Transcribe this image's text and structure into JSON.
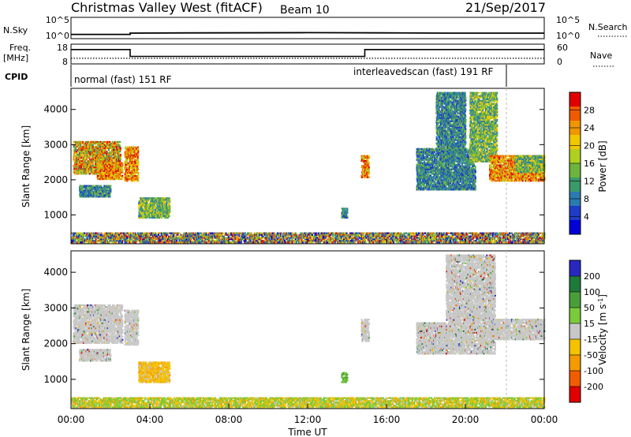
{
  "header": {
    "title": "Christmas Valley West (fitACF)",
    "beam": "Beam 10",
    "date": "21/Sep/2017"
  },
  "strip_labels": {
    "nsky": "N.Sky",
    "freq": "Freq.",
    "freq_unit": "[MHz]",
    "cpid": "CPID",
    "nsearch": "N.Search",
    "nave": "Nave",
    "nsky_ticks": [
      "10^5",
      "10^0"
    ],
    "nsearch_ticks": [
      "10^5",
      "10^0"
    ],
    "freq_ticks": [
      "18",
      "8"
    ],
    "nave_ticks": [
      "60",
      "0"
    ],
    "cpid_modes": [
      {
        "label": "normal (fast) 151 RF",
        "start": 0,
        "end": 21.9
      },
      {
        "label": "interleavedscan (fast) 191 RF",
        "start": 21.9,
        "end": 24
      }
    ]
  },
  "colors": {
    "power_scale": [
      "#0000d8",
      "#1e3cc8",
      "#2c7bb0",
      "#3a9a6a",
      "#6cb43c",
      "#b0d020",
      "#f0c800",
      "#f09600",
      "#f05a00",
      "#e00000"
    ],
    "velocity_scale": [
      "#2828c0",
      "#1e7a3a",
      "#4a9e3a",
      "#7acb3a",
      "#c8c8c8",
      "#f5c200",
      "#f59b00",
      "#f25c00",
      "#e00000"
    ]
  },
  "chart_data": [
    {
      "type": "line",
      "name": "N.Sky / N.Search",
      "x": [
        0,
        3,
        3,
        6,
        12,
        16,
        19,
        22,
        24
      ],
      "series": [
        {
          "values": [
            1.0,
            1.0,
            1.3,
            1.35,
            1.4,
            1.35,
            1.3,
            1.3,
            1.3
          ]
        }
      ],
      "ylim_log10": [
        0,
        5
      ]
    },
    {
      "type": "line",
      "name": "Freq / Nave",
      "x": [
        0,
        3.0,
        3.0,
        14.9,
        14.9,
        24
      ],
      "series": [
        {
          "name": "Freq.",
          "values": [
            15.3,
            15.3,
            11.8,
            11.8,
            15.3,
            15.3
          ]
        },
        {
          "name": "Nave",
          "values": [
            17,
            17,
            17,
            17,
            17,
            17
          ]
        }
      ],
      "freq_ylim": [
        8,
        18
      ],
      "nave_ylim": [
        0,
        60
      ]
    },
    {
      "type": "heatmap",
      "name": "power",
      "xlabel": "",
      "ylabel": "Slant Range [km]",
      "ylim": [
        180,
        4600
      ],
      "yticks": [
        1000,
        2000,
        3000,
        4000
      ],
      "xlim": [
        0,
        24
      ],
      "colorbar": {
        "label": "Power [dB]",
        "ticks": [
          4,
          8,
          12,
          16,
          20,
          24,
          28
        ],
        "range": [
          0,
          32
        ]
      },
      "regions": [
        {
          "t0": 0.1,
          "t1": 2.5,
          "r0": 2150,
          "r1": 3100,
          "level": "mid-high"
        },
        {
          "t0": 1.3,
          "t1": 2.6,
          "r0": 2000,
          "r1": 2500,
          "level": "high"
        },
        {
          "t0": 0.4,
          "t1": 2.0,
          "r0": 1500,
          "r1": 1850,
          "level": "low"
        },
        {
          "t0": 2.7,
          "t1": 3.4,
          "r0": 1950,
          "r1": 2950,
          "level": "high"
        },
        {
          "t0": 3.4,
          "t1": 5.0,
          "r0": 900,
          "r1": 1500,
          "level": "mid"
        },
        {
          "t0": 13.7,
          "t1": 14.0,
          "r0": 900,
          "r1": 1200,
          "level": "low"
        },
        {
          "t0": 14.7,
          "t1": 15.1,
          "r0": 2050,
          "r1": 2700,
          "level": "high"
        },
        {
          "t0": 17.5,
          "t1": 20.5,
          "r0": 1700,
          "r1": 2900,
          "level": "low"
        },
        {
          "t0": 18.5,
          "t1": 20.0,
          "r0": 2700,
          "r1": 4500,
          "level": "low"
        },
        {
          "t0": 20.2,
          "t1": 21.6,
          "r0": 2500,
          "r1": 4500,
          "level": "mid"
        },
        {
          "t0": 21.2,
          "t1": 24,
          "r0": 1950,
          "r1": 2700,
          "level": "high"
        },
        {
          "t0": 22.5,
          "t1": 24,
          "r0": 2200,
          "r1": 2700,
          "level": "mid"
        },
        {
          "t0": 0,
          "t1": 24,
          "r0": 200,
          "r1": 500,
          "level": "band"
        }
      ]
    },
    {
      "type": "heatmap",
      "name": "velocity",
      "xlabel": "Time UT",
      "ylabel": "Slant Range [km]",
      "ylim": [
        180,
        4600
      ],
      "yticks": [
        1000,
        2000,
        3000,
        4000
      ],
      "xlim": [
        0,
        24
      ],
      "xticks": [
        "00:00",
        "04:00",
        "08:00",
        "12:00",
        "16:00",
        "20:00",
        "00:00"
      ],
      "colorbar": {
        "label": "Velocity [m s",
        "label_sup": "-1",
        "label_end": "]",
        "ticks": [
          200,
          100,
          50,
          15,
          -15,
          -50,
          -100,
          -200
        ]
      },
      "regions": [
        {
          "t0": 0.1,
          "t1": 2.6,
          "r0": 2000,
          "r1": 3100,
          "level": "grey"
        },
        {
          "t0": 0.4,
          "t1": 2.0,
          "r0": 1500,
          "r1": 1850,
          "level": "grey"
        },
        {
          "t0": 2.7,
          "t1": 3.4,
          "r0": 1950,
          "r1": 2950,
          "level": "grey"
        },
        {
          "t0": 3.4,
          "t1": 5.0,
          "r0": 900,
          "r1": 1500,
          "level": "orange"
        },
        {
          "t0": 13.7,
          "t1": 14.0,
          "r0": 900,
          "r1": 1200,
          "level": "green"
        },
        {
          "t0": 14.7,
          "t1": 15.1,
          "r0": 2050,
          "r1": 2700,
          "level": "grey"
        },
        {
          "t0": 17.5,
          "t1": 21.5,
          "r0": 1700,
          "r1": 2600,
          "level": "grey"
        },
        {
          "t0": 19.0,
          "t1": 21.5,
          "r0": 2600,
          "r1": 4500,
          "level": "grey"
        },
        {
          "t0": 21.2,
          "t1": 24,
          "r0": 2100,
          "r1": 2700,
          "level": "grey"
        },
        {
          "t0": 0,
          "t1": 24,
          "r0": 200,
          "r1": 500,
          "level": "band"
        }
      ]
    }
  ]
}
